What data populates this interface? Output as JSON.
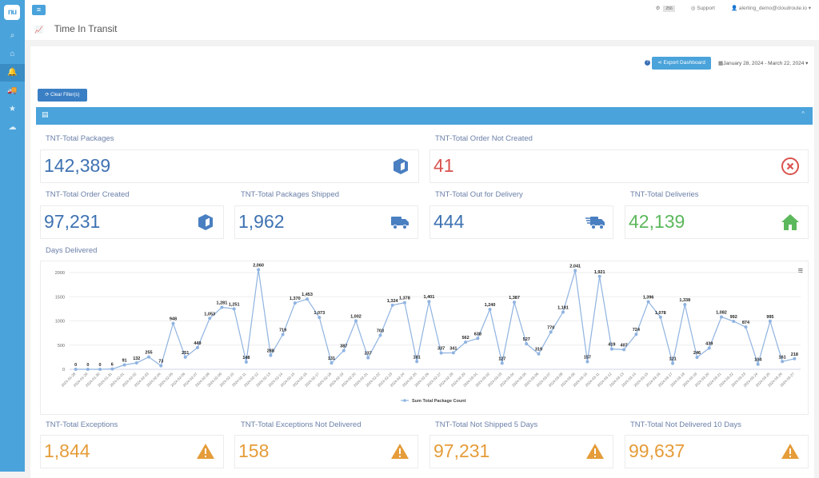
{
  "sidebar": {
    "logo": "nu",
    "items": [
      {
        "name": "search",
        "glyph": "⌕"
      },
      {
        "name": "home",
        "glyph": "⌂"
      },
      {
        "name": "alerts",
        "glyph": "🔔",
        "active": true
      },
      {
        "name": "shipping",
        "glyph": "🚚"
      },
      {
        "name": "favorites",
        "glyph": "★"
      },
      {
        "name": "cloud",
        "glyph": "☁"
      }
    ]
  },
  "topbar": {
    "menu_glyph": "≡",
    "settings_badge": "256",
    "support_label": "Support",
    "user_label": "alerting_demo@cloudroute.io",
    "title": "Time In Transit",
    "title_icon_glyph": "📈"
  },
  "toolbar": {
    "help_glyph": "?",
    "export_label": "Export Dashboard",
    "date_range": "January 28, 2024 - March 22, 2024",
    "clear_filters_label": "Clear Filter(s)"
  },
  "panel": {
    "collapse_glyph": "^",
    "header_icon_glyph": "▤"
  },
  "cards": {
    "total_packages": {
      "label": "TNT-Total Packages",
      "value": "142,389",
      "color": "#3e72b2"
    },
    "order_not_created": {
      "label": "TNT-Total Order Not Created",
      "value": "41",
      "color": "#d9534f"
    },
    "order_created": {
      "label": "TNT-Total Order Created",
      "value": "97,231",
      "color": "#3e72b2"
    },
    "packages_shipped": {
      "label": "TNT-Total Packages Shipped",
      "value": "1,962",
      "color": "#3e72b2"
    },
    "out_for_delivery": {
      "label": "TNT-Total Out for Delivery",
      "value": "444",
      "color": "#3e72b2"
    },
    "deliveries": {
      "label": "TNT-Total Deliveries",
      "value": "42,139",
      "color": "#5cb85c"
    },
    "exceptions": {
      "label": "TNT-Total Exceptions",
      "value": "1,844",
      "color": "#e59c39"
    },
    "exceptions_not_delivered": {
      "label": "TNT-Total Exceptions Not Delivered",
      "value": "158",
      "color": "#e59c39"
    },
    "not_shipped_5": {
      "label": "TNT-Total Not Shipped 5 Days",
      "value": "97,231",
      "color": "#e59c39"
    },
    "not_delivered_10": {
      "label": "TNT-Total Not Delivered 10 Days",
      "value": "99,637",
      "color": "#e59c39"
    }
  },
  "chart_section": {
    "label": "Days Delivered",
    "menu_glyph": "≡"
  },
  "chart_data": {
    "type": "line",
    "title": "",
    "xlabel": "",
    "ylabel": "",
    "ylim": [
      0,
      2000
    ],
    "yticks": [
      0,
      500,
      1000,
      1500,
      2000
    ],
    "grid": true,
    "legend": "bottom-center",
    "series": [
      {
        "name": "Sum Total Package Count",
        "color": "#8fb3e0",
        "values": [
          0,
          0,
          0,
          6,
          91,
          132,
          255,
          73,
          948,
          251,
          449,
          1053,
          1281,
          1251,
          148,
          2060,
          288,
          719,
          1370,
          1453,
          1073,
          131,
          387,
          1002,
          237,
          703,
          1324,
          1378,
          161,
          1401,
          337,
          341,
          562,
          638,
          1240,
          127,
          1387,
          527,
          319,
          770,
          1181,
          2041,
          157,
          1921,
          419,
          407,
          724,
          1396,
          1078,
          121,
          1338,
          246,
          439,
          1082,
          992,
          874,
          104,
          995,
          161,
          218
        ]
      }
    ],
    "x": [
      "2024-01-28",
      "2024-01-29",
      "2024-01-30",
      "2024-01-31",
      "2024-02-01",
      "2024-02-02",
      "2024-02-03",
      "2024-02-04",
      "2024-02-05",
      "2024-02-06",
      "2024-02-07",
      "2024-02-08",
      "2024-02-09",
      "2024-02-10",
      "2024-02-11",
      "2024-02-12",
      "2024-02-13",
      "2024-02-14",
      "2024-02-15",
      "2024-02-16",
      "2024-02-17",
      "2024-02-18",
      "2024-02-19",
      "2024-02-20",
      "2024-02-21",
      "2024-02-22",
      "2024-02-23",
      "2024-02-24",
      "2024-02-25",
      "2024-02-26",
      "2024-02-27",
      "2024-02-28",
      "2024-02-29",
      "2024-03-01",
      "2024-03-02",
      "2024-03-03",
      "2024-03-04",
      "2024-03-05",
      "2024-03-06",
      "2024-03-07",
      "2024-03-08",
      "2024-03-09",
      "2024-03-10",
      "2024-03-11",
      "2024-03-12",
      "2024-03-13",
      "2024-03-14",
      "2024-03-15",
      "2024-03-16",
      "2024-03-17",
      "2024-03-18",
      "2024-03-19",
      "2024-03-20",
      "2024-03-21",
      "2024-03-22",
      "2024-03-23",
      "2024-03-24",
      "2024-03-25",
      "2024-03-26",
      "2024-03-27"
    ]
  }
}
